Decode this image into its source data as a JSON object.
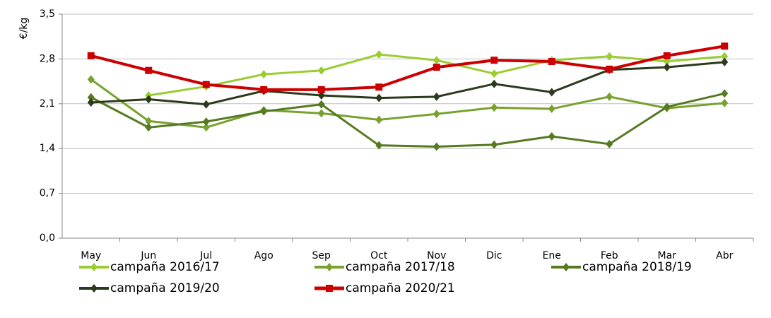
{
  "chart_data": {
    "type": "line",
    "y_label": "€/kg",
    "categories": [
      "May",
      "Jun",
      "Jul",
      "Ago",
      "Sep",
      "Oct",
      "Nov",
      "Dic",
      "Ene",
      "Feb",
      "Mar",
      "Abr"
    ],
    "series": [
      {
        "name": "campaña 2016/17",
        "color": "#9acd32",
        "marker": "diamond",
        "values": [
          null,
          2.23,
          2.37,
          2.56,
          2.62,
          2.87,
          2.78,
          2.57,
          2.78,
          2.84,
          2.76,
          2.84
        ]
      },
      {
        "name": "campaña 2017/18",
        "color": "#78a22f",
        "marker": "diamond",
        "values": [
          2.48,
          1.83,
          1.73,
          2.0,
          1.95,
          1.85,
          1.94,
          2.04,
          2.02,
          2.21,
          2.03,
          2.11
        ]
      },
      {
        "name": "campaña 2018/19",
        "color": "#567a20",
        "marker": "diamond",
        "values": [
          2.2,
          1.73,
          1.82,
          1.98,
          2.09,
          1.45,
          1.43,
          1.46,
          1.59,
          1.47,
          2.05,
          2.26
        ]
      },
      {
        "name": "campaña 2019/20",
        "color": "#2b3a1c",
        "marker": "diamond",
        "values": [
          2.12,
          2.17,
          2.09,
          2.3,
          2.23,
          2.19,
          2.21,
          2.41,
          2.28,
          2.63,
          2.67,
          2.75
        ]
      },
      {
        "name": "campaña 2020/21",
        "color": "#cc0000",
        "marker": "square",
        "values": [
          2.85,
          2.62,
          2.4,
          2.32,
          2.32,
          2.36,
          2.67,
          2.78,
          2.76,
          2.64,
          2.85,
          3.0
        ]
      }
    ],
    "ylim": [
      0,
      3.5
    ],
    "yticks": [
      {
        "value": 0,
        "label": "0,0"
      },
      {
        "value": 0.7,
        "label": "0,7"
      },
      {
        "value": 1.4,
        "label": "1,4"
      },
      {
        "value": 2.1,
        "label": "2,1"
      },
      {
        "value": 2.8,
        "label": "2,8"
      },
      {
        "value": 3.5,
        "label": "3,5"
      }
    ],
    "grid": true
  }
}
